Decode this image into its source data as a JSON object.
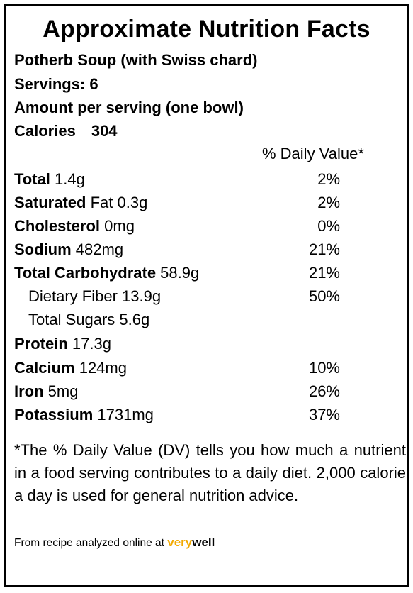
{
  "title": "Approximate Nutrition Facts",
  "recipe_name": "Potherb Soup (with Swiss chard)",
  "servings": "Servings: 6",
  "amount_per_serving": "Amount per serving (one bowl)",
  "calories": {
    "label": "Calories",
    "value": "304"
  },
  "dv_header": "% Daily Value*",
  "nutrients": [
    {
      "label": "Total",
      "value": " 1.4g",
      "dv": "2%",
      "indent": false
    },
    {
      "label": "Saturated",
      "value": " Fat 0.3g",
      "dv": "2%",
      "indent": false
    },
    {
      "label": "Cholesterol",
      "value": " 0mg",
      "dv": "0%",
      "indent": false
    },
    {
      "label": "Sodium",
      "value": " 482mg",
      "dv": "21%",
      "indent": false
    },
    {
      "label": "Total Carbohydrate",
      "value": " 58.9g",
      "dv": "21%",
      "indent": false
    },
    {
      "label": "Dietary Fiber",
      "value": " 13.9g",
      "dv": "50%",
      "indent": true
    },
    {
      "label": "Total Sugars",
      "value": " 5.6g",
      "dv": "",
      "indent": true
    },
    {
      "label": "Protein",
      "value": " 17.3g",
      "dv": "",
      "indent": false
    },
    {
      "label": "Calcium",
      "value": " 124mg",
      "dv": "10%",
      "indent": false
    },
    {
      "label": "Iron",
      "value": " 5mg",
      "dv": "26%",
      "indent": false
    },
    {
      "label": "Potassium",
      "value": " 1731mg",
      "dv": "37%",
      "indent": false
    }
  ],
  "footnote": "*The % Daily Value (DV) tells you how much a nutrient in a food serving contributes to a daily diet. 2,000 calorie a day is used for general nutrition advice.",
  "source": {
    "text": "From recipe analyzed online at ",
    "brand_part1": "very",
    "brand_part2": "well",
    "brand_color": "#f2a900"
  }
}
